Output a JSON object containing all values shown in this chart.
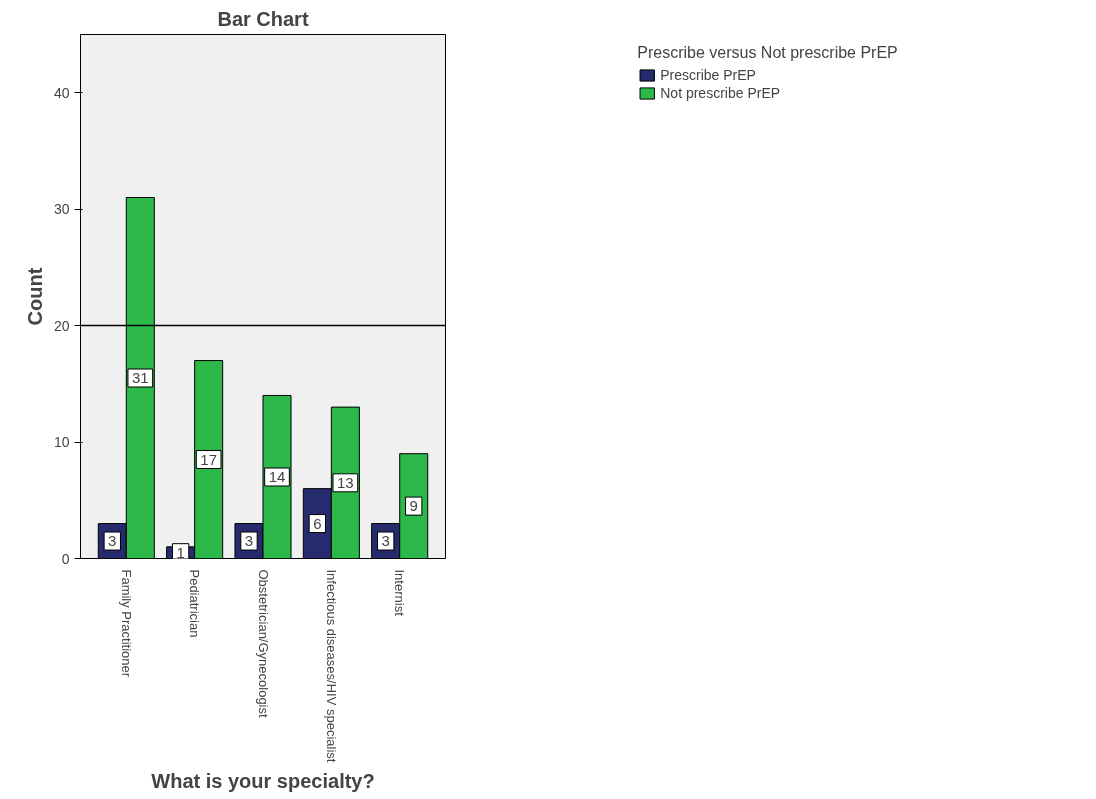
{
  "chart_data": {
    "type": "bar",
    "title": "Bar Chart",
    "xlabel": "What is your specialty?",
    "ylabel": "Count",
    "legend_title": "Prescribe versus Not prescribe PrEP",
    "categories": [
      "Family Practitioner",
      "Pediatrician",
      "Obstetrician/Gynecologist",
      "Infectious diseases/HIV specialist",
      "Internist"
    ],
    "series": [
      {
        "name": "Prescribe PrEP",
        "color": "#262b6e",
        "values": [
          3,
          1,
          3,
          6,
          3
        ]
      },
      {
        "name": "Not prescribe PrEP",
        "color": "#2db84a",
        "values": [
          31,
          17,
          14,
          13,
          9
        ]
      }
    ],
    "ylim": [
      0,
      45
    ],
    "yticks": [
      0,
      10,
      20,
      30,
      40
    ],
    "ref_lines": [
      {
        "axis": "y",
        "value": 20,
        "color": "#000000"
      }
    ],
    "data_labels": true,
    "grid": false,
    "legend": "right"
  }
}
